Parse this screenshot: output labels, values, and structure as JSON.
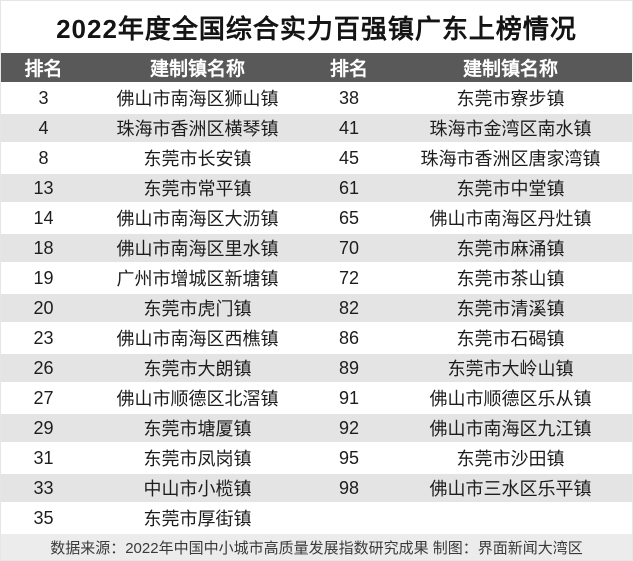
{
  "page": {
    "title": "2022年度全国综合实力百强镇广东上榜情况",
    "footer_note": "数据来源：2022年中国中小城市高质量发展指数研究成果 制图：界面新闻大湾区"
  },
  "colors": {
    "header_bar": "#595959",
    "header_text": "#ffffff",
    "row_alt": "#e4e4e4",
    "footer_bg": "#ececec",
    "body_text": "#1d1d1d"
  },
  "chart_data": {
    "type": "table",
    "title": "2022年度全国综合实力百强镇广东上榜情况",
    "columns": [
      "排名",
      "建制镇名称",
      "排名",
      "建制镇名称"
    ],
    "rows": [
      [
        "3",
        "佛山市南海区狮山镇",
        "38",
        "东莞市寮步镇"
      ],
      [
        "4",
        "珠海市香洲区横琴镇",
        "41",
        "珠海市金湾区南水镇"
      ],
      [
        "8",
        "东莞市长安镇",
        "45",
        "珠海市香洲区唐家湾镇"
      ],
      [
        "13",
        "东莞市常平镇",
        "61",
        "东莞市中堂镇"
      ],
      [
        "14",
        "佛山市南海区大沥镇",
        "65",
        "佛山市南海区丹灶镇"
      ],
      [
        "18",
        "佛山市南海区里水镇",
        "70",
        "东莞市麻涌镇"
      ],
      [
        "19",
        "广州市增城区新塘镇",
        "72",
        "东莞市茶山镇"
      ],
      [
        "20",
        "东莞市虎门镇",
        "82",
        "东莞市清溪镇"
      ],
      [
        "23",
        "佛山市南海区西樵镇",
        "86",
        "东莞市石碣镇"
      ],
      [
        "26",
        "东莞市大朗镇",
        "89",
        "东莞市大岭山镇"
      ],
      [
        "27",
        "佛山市顺德区北滘镇",
        "91",
        "佛山市顺德区乐从镇"
      ],
      [
        "29",
        "东莞市塘厦镇",
        "92",
        "佛山市南海区九江镇"
      ],
      [
        "31",
        "东莞市凤岗镇",
        "95",
        "东莞市沙田镇"
      ],
      [
        "33",
        "中山市小榄镇",
        "98",
        "佛山市三水区乐平镇"
      ],
      [
        "35",
        "东莞市厚街镇",
        "",
        ""
      ]
    ],
    "layout": {
      "row_striping": "alternating white / light gray",
      "header_style": "dark gray bar, white bold text",
      "source_note_position": "bottom bar, centered"
    }
  }
}
